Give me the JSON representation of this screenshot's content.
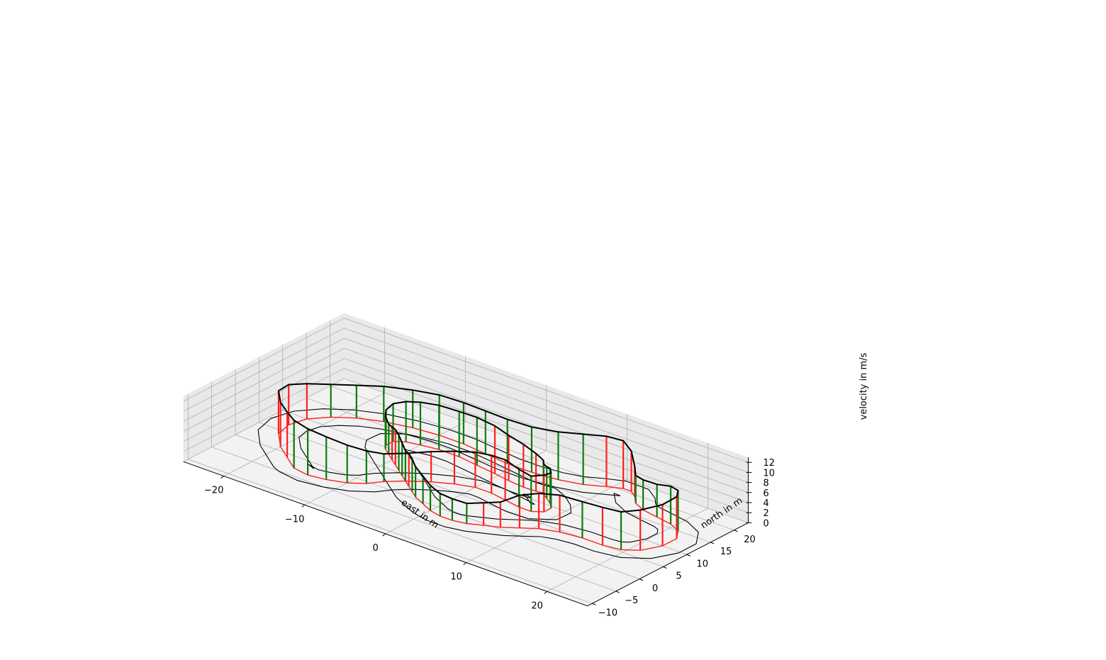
{
  "chart_data": {
    "type": "line",
    "projection": "3d",
    "xlabel": "east in m",
    "ylabel": "north in m",
    "zlabel": "velocity in m/s",
    "x_ticks": [
      "−20",
      "−10",
      "0",
      "10",
      "20"
    ],
    "y_ticks": [
      "−10",
      "−5",
      "0",
      "5",
      "10",
      "15",
      "20"
    ],
    "z_ticks": [
      "0",
      "2",
      "4",
      "6",
      "8",
      "10",
      "12"
    ],
    "xlim": [
      -25,
      25
    ],
    "ylim": [
      -11,
      23
    ],
    "zlim": [
      0,
      13
    ],
    "grid": true,
    "colors": {
      "track_border": "#000000",
      "velocity_profile": "#000000",
      "ground_trace": "#ff2020",
      "accelerating": "#0a7d0a",
      "braking": "#ff2020",
      "pane_bottom": "#f2f2f2",
      "pane_side": "#e9e9e9",
      "grid": "#b0b0b0"
    },
    "series": [
      {
        "x": [
          -16,
          -18,
          -20,
          -22,
          -22.5,
          -22,
          -20.5,
          -18.5,
          -16,
          -13,
          -10,
          -7,
          -4,
          -1,
          2,
          5,
          7.5,
          9.5,
          11,
          12,
          13,
          14,
          15.5,
          17.5,
          19.5,
          21,
          22,
          22,
          21,
          19.5,
          17.5,
          15,
          12.5,
          10.5,
          9,
          7.5,
          6,
          4.5,
          3,
          1.5,
          0,
          -1.5,
          -3,
          -4,
          -5,
          -6,
          -7,
          -8,
          -9,
          -10,
          -11,
          -12,
          -12.5,
          -12.5,
          -11.5,
          -10,
          -8,
          -5.5,
          -3,
          -0.5,
          1.5,
          3.5,
          5,
          5.8,
          6,
          6.8,
          7.8,
          8.5,
          8.5,
          7.5,
          6,
          4,
          2,
          0,
          -2,
          -4,
          -6,
          -7.5,
          -8.5,
          -10,
          -12,
          -14,
          -16
        ],
        "y": [
          -3,
          -1,
          1,
          4,
          7,
          10,
          12.5,
          14.5,
          16,
          17,
          17.5,
          17.5,
          17,
          16.5,
          16.5,
          17,
          18,
          19.5,
          20.5,
          20.5,
          19.5,
          18,
          17,
          16.5,
          16,
          15,
          13,
          10,
          7,
          5.5,
          5,
          5,
          4.5,
          3.5,
          2,
          0.5,
          -0.5,
          -1.5,
          -2,
          -2,
          -1.5,
          -0.5,
          0.5,
          1.5,
          2.5,
          3.5,
          4.5,
          5.5,
          6.5,
          7.5,
          8.5,
          9.5,
          10.5,
          12,
          13,
          13.5,
          14,
          14,
          13.5,
          13,
          12.5,
          12.2,
          12.3,
          12.5,
          12.2,
          11.5,
          10.5,
          9.5,
          8,
          7,
          7,
          7.5,
          8,
          8,
          7,
          5.5,
          3.5,
          1.5,
          -0.5,
          -2,
          -3,
          -3.5,
          -3
        ],
        "v": [
          9.5,
          9,
          8.8,
          8.5,
          8,
          7,
          6.5,
          6.5,
          7,
          7.5,
          8,
          8.2,
          8.5,
          8.8,
          9,
          9.5,
          10,
          10,
          9.5,
          8,
          6,
          5.5,
          6,
          6.5,
          7.5,
          8,
          8.3,
          8.2,
          8,
          7.5,
          7.5,
          7.2,
          7.3,
          7,
          6.5,
          5,
          4.5,
          4,
          4.3,
          4.5,
          5,
          5.5,
          6,
          6.5,
          6.5,
          6,
          6.5,
          7,
          7,
          6.5,
          6,
          6.5,
          7,
          7.5,
          8,
          8.5,
          8.8,
          9,
          9.5,
          9.5,
          9,
          8.5,
          7.5,
          6.5,
          6,
          6.3,
          7,
          7,
          7.3,
          7,
          7.5,
          8,
          7.5,
          7,
          6.5,
          6,
          5.5,
          5.5,
          6.5,
          7.5,
          8.5,
          9.2,
          9.5
        ]
      }
    ]
  }
}
